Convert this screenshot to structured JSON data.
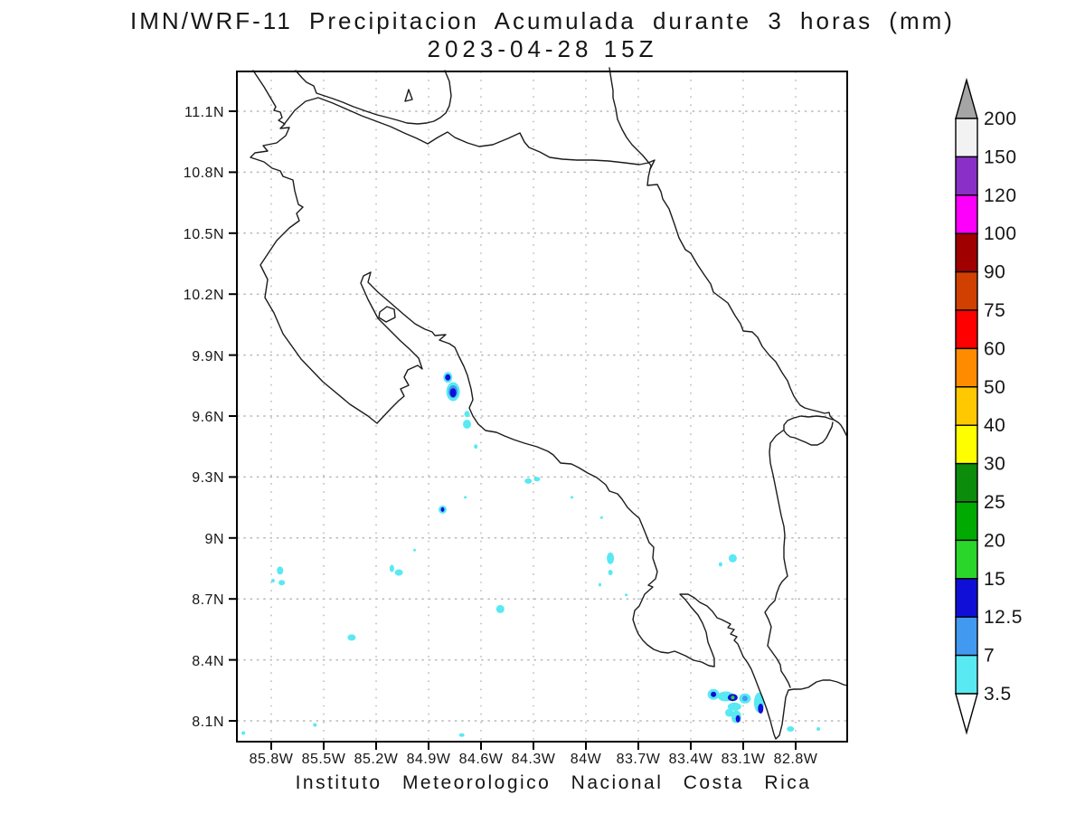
{
  "title": {
    "line1": "IMN/WRF-11 Precipitacion Acumulada durante 3 horas (mm)",
    "line2": "2023-04-28 15Z"
  },
  "footer": "Instituto Meteorologico Nacional Costa Rica",
  "axes": {
    "lat_ticks": [
      "11.1N",
      "10.8N",
      "10.5N",
      "10.2N",
      "9.9N",
      "9.6N",
      "9.3N",
      "9N",
      "8.7N",
      "8.4N",
      "8.1N"
    ],
    "lon_ticks": [
      "85.8W",
      "85.5W",
      "85.2W",
      "84.9W",
      "84.6W",
      "84.3W",
      "84W",
      "83.7W",
      "83.4W",
      "83.1W",
      "82.8W"
    ]
  },
  "colorbar": {
    "labels": [
      "200",
      "150",
      "120",
      "100",
      "90",
      "75",
      "60",
      "50",
      "40",
      "30",
      "25",
      "20",
      "15",
      "12.5",
      "7",
      "3.5"
    ],
    "cells": [
      {
        "range": "150-200",
        "color": "#F2F2F2"
      },
      {
        "range": "120-150",
        "color": "#8B2FC9"
      },
      {
        "range": "100-120",
        "color": "#FC00FC"
      },
      {
        "range": "90-100",
        "color": "#A00000"
      },
      {
        "range": "75-90",
        "color": "#D04000"
      },
      {
        "range": "60-75",
        "color": "#FE0000"
      },
      {
        "range": "50-60",
        "color": "#FF8C00"
      },
      {
        "range": "40-50",
        "color": "#FFC800"
      },
      {
        "range": "30-40",
        "color": "#FEFE00"
      },
      {
        "range": "25-30",
        "color": "#0B8C0B"
      },
      {
        "range": "20-25",
        "color": "#00AA00"
      },
      {
        "range": "15-20",
        "color": "#2BD62B"
      },
      {
        "range": "12.5-15",
        "color": "#0F0FD8"
      },
      {
        "range": "7-12.5",
        "color": "#4199F0"
      },
      {
        "range": "3.5-7",
        "color": "#58E9F2"
      }
    ],
    "arrow_top_color": "#A5A5A5",
    "arrow_bottom_color": "#FFFFFF"
  },
  "chart_data": {
    "type": "heatmap",
    "title": "IMN/WRF-11 Precipitacion Acumulada durante 3 horas (mm)",
    "subtitle": "2023-04-28 15Z",
    "units": "mm",
    "region": "Costa Rica",
    "lon_range_west_deg": [
      86.0,
      82.5
    ],
    "lat_range_deg": [
      8.0,
      11.3
    ],
    "grid_interval_deg": 0.3,
    "grid_style": "dotted gray",
    "legend_position": "right",
    "levels_mm": [
      3.5,
      7,
      12.5,
      15,
      20,
      25,
      30,
      40,
      50,
      60,
      75,
      90,
      100,
      120,
      150,
      200
    ],
    "level_colors": {
      "3.5-7": "#58E9F2",
      "7-12.5": "#4199F0",
      "12.5-15": "#0F0FD8",
      "15-20": "#2BD62B"
    },
    "spots": [
      {
        "lon": 84.79,
        "lat": 9.79,
        "mm": "3.5-7",
        "w": 10,
        "h": 12
      },
      {
        "lon": 84.79,
        "lat": 9.79,
        "mm": "12.5-15",
        "w": 6,
        "h": 7
      },
      {
        "lon": 84.76,
        "lat": 9.72,
        "mm": "3.5-7",
        "w": 15,
        "h": 21
      },
      {
        "lon": 84.76,
        "lat": 9.72,
        "mm": "7-12.5",
        "w": 10,
        "h": 14
      },
      {
        "lon": 84.76,
        "lat": 9.715,
        "mm": "12.5-15",
        "w": 7,
        "h": 10
      },
      {
        "lon": 84.68,
        "lat": 9.61,
        "mm": "3.5-7",
        "w": 6,
        "h": 7
      },
      {
        "lon": 84.68,
        "lat": 9.56,
        "mm": "3.5-7",
        "w": 9,
        "h": 10
      },
      {
        "lon": 84.63,
        "lat": 9.45,
        "mm": "3.5-7",
        "w": 4,
        "h": 5
      },
      {
        "lon": 84.82,
        "lat": 9.14,
        "mm": "3.5-7",
        "w": 9,
        "h": 9
      },
      {
        "lon": 84.82,
        "lat": 9.14,
        "mm": "12.5-15",
        "w": 4,
        "h": 5
      },
      {
        "lon": 84.69,
        "lat": 9.2,
        "mm": "3.5-7",
        "w": 3,
        "h": 3
      },
      {
        "lon": 84.33,
        "lat": 9.28,
        "mm": "3.5-7",
        "w": 8,
        "h": 6
      },
      {
        "lon": 84.28,
        "lat": 9.29,
        "mm": "3.5-7",
        "w": 7,
        "h": 5
      },
      {
        "lon": 84.08,
        "lat": 9.2,
        "mm": "3.5-7",
        "w": 3,
        "h": 3
      },
      {
        "lon": 83.91,
        "lat": 9.1,
        "mm": "3.5-7",
        "w": 3,
        "h": 3
      },
      {
        "lon": 84.98,
        "lat": 8.94,
        "mm": "3.5-7",
        "w": 3,
        "h": 3
      },
      {
        "lon": 83.86,
        "lat": 8.9,
        "mm": "3.5-7",
        "w": 8,
        "h": 13
      },
      {
        "lon": 83.86,
        "lat": 8.83,
        "mm": "3.5-7",
        "w": 5,
        "h": 6
      },
      {
        "lon": 83.92,
        "lat": 8.77,
        "mm": "3.5-7",
        "w": 3,
        "h": 4
      },
      {
        "lon": 83.77,
        "lat": 8.72,
        "mm": "3.5-7",
        "w": 3,
        "h": 3
      },
      {
        "lon": 83.16,
        "lat": 8.9,
        "mm": "3.5-7",
        "w": 9,
        "h": 9
      },
      {
        "lon": 83.23,
        "lat": 8.87,
        "mm": "3.5-7",
        "w": 4,
        "h": 5
      },
      {
        "lon": 85.11,
        "lat": 8.85,
        "mm": "3.5-7",
        "w": 5,
        "h": 8
      },
      {
        "lon": 85.07,
        "lat": 8.83,
        "mm": "3.5-7",
        "w": 9,
        "h": 7
      },
      {
        "lon": 85.75,
        "lat": 8.84,
        "mm": "3.5-7",
        "w": 7,
        "h": 9
      },
      {
        "lon": 85.74,
        "lat": 8.78,
        "mm": "3.5-7",
        "w": 7,
        "h": 6
      },
      {
        "lon": 85.79,
        "lat": 8.79,
        "mm": "3.5-7",
        "w": 4,
        "h": 4
      },
      {
        "lon": 85.34,
        "lat": 8.51,
        "mm": "3.5-7",
        "w": 9,
        "h": 7
      },
      {
        "lon": 84.49,
        "lat": 8.65,
        "mm": "3.5-7",
        "w": 9,
        "h": 9
      },
      {
        "lon": 83.27,
        "lat": 8.23,
        "mm": "3.5-7",
        "w": 13,
        "h": 12
      },
      {
        "lon": 83.27,
        "lat": 8.23,
        "mm": "12.5-15",
        "w": 6,
        "h": 6
      },
      {
        "lon": 83.2,
        "lat": 8.22,
        "mm": "3.5-7",
        "w": 18,
        "h": 11
      },
      {
        "lon": 83.16,
        "lat": 8.215,
        "mm": "12.5-15",
        "w": 11,
        "h": 8
      },
      {
        "lon": 83.16,
        "lat": 8.215,
        "mm": "15-20",
        "w": 4,
        "h": 4
      },
      {
        "lon": 83.09,
        "lat": 8.21,
        "mm": "3.5-7",
        "w": 13,
        "h": 11
      },
      {
        "lon": 83.09,
        "lat": 8.21,
        "mm": "7-12.5",
        "w": 6,
        "h": 6
      },
      {
        "lon": 83.15,
        "lat": 8.17,
        "mm": "3.5-7",
        "w": 15,
        "h": 9
      },
      {
        "lon": 83.18,
        "lat": 8.14,
        "mm": "3.5-7",
        "w": 9,
        "h": 9
      },
      {
        "lon": 83.14,
        "lat": 8.12,
        "mm": "3.5-7",
        "w": 11,
        "h": 14
      },
      {
        "lon": 83.13,
        "lat": 8.11,
        "mm": "12.5-15",
        "w": 5,
        "h": 8
      },
      {
        "lon": 83.01,
        "lat": 8.19,
        "mm": "3.5-7",
        "w": 11,
        "h": 22
      },
      {
        "lon": 83.0,
        "lat": 8.16,
        "mm": "12.5-15",
        "w": 6,
        "h": 11
      },
      {
        "lon": 82.83,
        "lat": 8.06,
        "mm": "3.5-7",
        "w": 8,
        "h": 6
      },
      {
        "lon": 82.67,
        "lat": 8.06,
        "mm": "3.5-7",
        "w": 4,
        "h": 4
      },
      {
        "lon": 85.55,
        "lat": 8.08,
        "mm": "3.5-7",
        "w": 4,
        "h": 4
      },
      {
        "lon": 85.96,
        "lat": 8.04,
        "mm": "3.5-7",
        "w": 4,
        "h": 4
      },
      {
        "lon": 84.71,
        "lat": 8.03,
        "mm": "3.5-7",
        "w": 6,
        "h": 4
      }
    ]
  }
}
